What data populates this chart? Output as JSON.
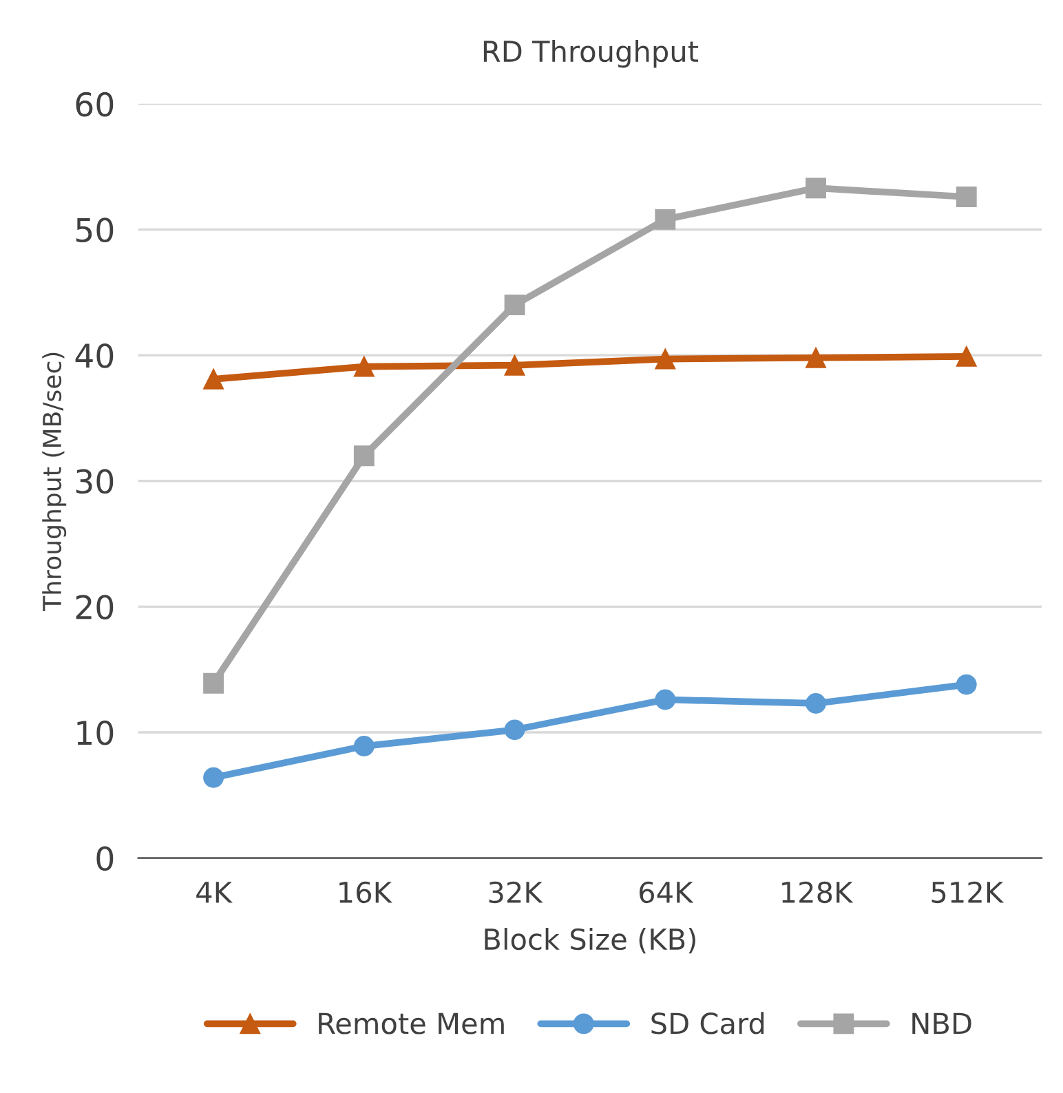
{
  "chart_data": {
    "type": "line",
    "title": "RD Throughput",
    "xlabel": "Block Size (KB)",
    "ylabel": "Throughput (MB/sec)",
    "categories": [
      "4K",
      "16K",
      "32K",
      "64K",
      "128K",
      "512K"
    ],
    "series": [
      {
        "name": "Remote Mem",
        "color": "#c55a11",
        "marker": "triangle",
        "values": [
          38.1,
          39.1,
          39.2,
          39.7,
          39.8,
          39.9
        ]
      },
      {
        "name": "SD Card",
        "color": "#5b9bd5",
        "marker": "circle",
        "values": [
          6.4,
          8.9,
          10.2,
          12.6,
          12.3,
          13.8
        ]
      },
      {
        "name": "NBD",
        "color": "#a5a5a5",
        "marker": "square",
        "values": [
          13.9,
          32.0,
          44.0,
          50.8,
          53.3,
          52.6
        ]
      }
    ],
    "ylim": [
      0,
      60
    ],
    "yticks": [
      0,
      10,
      20,
      30,
      40,
      50,
      60
    ],
    "grid": "y",
    "legend": "bottom",
    "line_style": "solid"
  }
}
